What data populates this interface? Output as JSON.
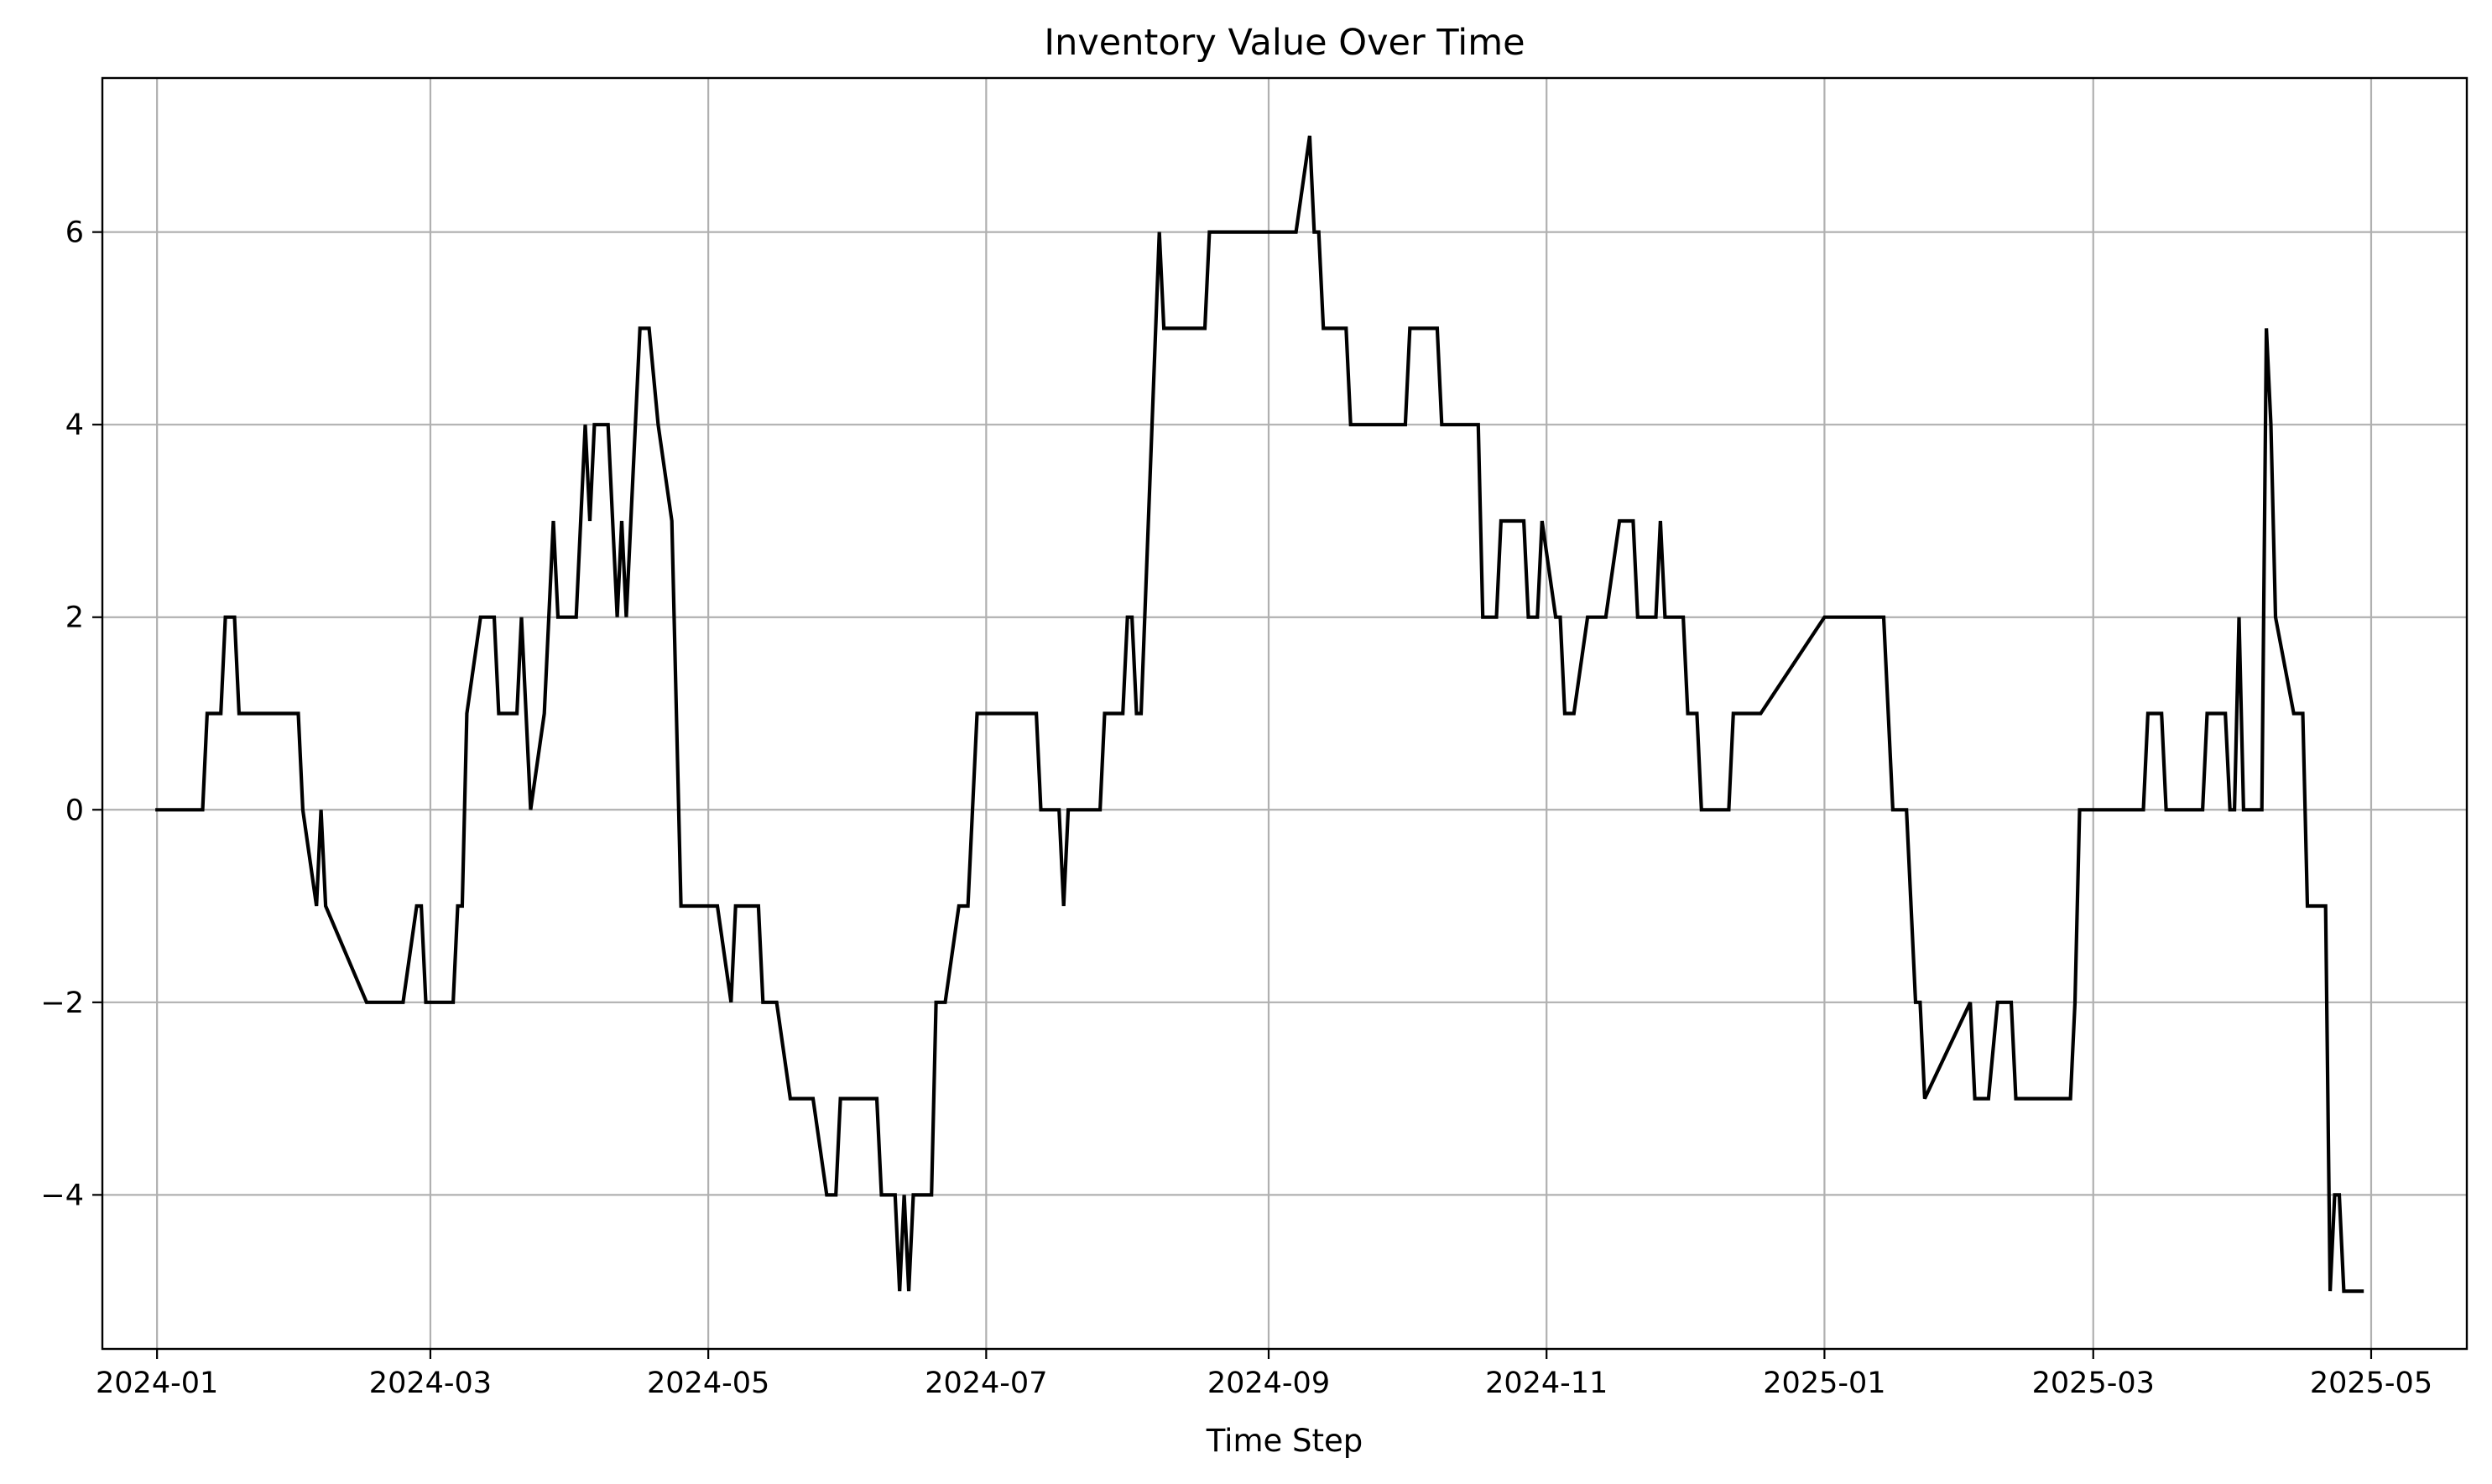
{
  "chart_data": {
    "type": "line",
    "title": "Inventory Value Over Time",
    "xlabel": "Time Step",
    "ylabel": "",
    "x_tick_labels": [
      "2024-01",
      "2024-03",
      "2024-05",
      "2024-07",
      "2024-09",
      "2024-11",
      "2025-01",
      "2025-03",
      "2025-05"
    ],
    "y_ticks": [
      -4,
      -2,
      0,
      2,
      4,
      6
    ],
    "xlim": [
      "2023-12-20",
      "2025-05-22"
    ],
    "ylim": [
      -5.6,
      7.6
    ],
    "grid": true,
    "colors": {
      "line": "#000000",
      "grid": "#b0b0b0"
    },
    "series": [
      {
        "name": "",
        "points": [
          [
            "2024-01-01",
            0
          ],
          [
            "2024-01-11",
            0
          ],
          [
            "2024-01-12",
            1
          ],
          [
            "2024-01-15",
            1
          ],
          [
            "2024-01-16",
            2
          ],
          [
            "2024-01-18",
            2
          ],
          [
            "2024-01-19",
            1
          ],
          [
            "2024-02-01",
            1
          ],
          [
            "2024-02-02",
            0
          ],
          [
            "2024-02-05",
            -1
          ],
          [
            "2024-02-06",
            0
          ],
          [
            "2024-02-07",
            -1
          ],
          [
            "2024-02-16",
            -2
          ],
          [
            "2024-02-24",
            -2
          ],
          [
            "2024-02-27",
            -1
          ],
          [
            "2024-02-28",
            -1
          ],
          [
            "2024-02-29",
            -2
          ],
          [
            "2024-03-06",
            -2
          ],
          [
            "2024-03-07",
            -1
          ],
          [
            "2024-03-08",
            -1
          ],
          [
            "2024-03-09",
            1
          ],
          [
            "2024-03-12",
            2
          ],
          [
            "2024-03-15",
            2
          ],
          [
            "2024-03-16",
            1
          ],
          [
            "2024-03-20",
            1
          ],
          [
            "2024-03-21",
            2
          ],
          [
            "2024-03-23",
            0
          ],
          [
            "2024-03-26",
            1
          ],
          [
            "2024-03-28",
            3
          ],
          [
            "2024-03-29",
            2
          ],
          [
            "2024-04-02",
            2
          ],
          [
            "2024-04-04",
            4
          ],
          [
            "2024-04-05",
            3
          ],
          [
            "2024-04-06",
            4
          ],
          [
            "2024-04-09",
            4
          ],
          [
            "2024-04-11",
            2
          ],
          [
            "2024-04-12",
            3
          ],
          [
            "2024-04-13",
            2
          ],
          [
            "2024-04-16",
            5
          ],
          [
            "2024-04-18",
            5
          ],
          [
            "2024-04-20",
            4
          ],
          [
            "2024-04-23",
            3
          ],
          [
            "2024-04-25",
            -1
          ],
          [
            "2024-05-03",
            -1
          ],
          [
            "2024-05-06",
            -2
          ],
          [
            "2024-05-07",
            -1
          ],
          [
            "2024-05-12",
            -1
          ],
          [
            "2024-05-13",
            -2
          ],
          [
            "2024-05-16",
            -2
          ],
          [
            "2024-05-19",
            -3
          ],
          [
            "2024-05-24",
            -3
          ],
          [
            "2024-05-27",
            -4
          ],
          [
            "2024-05-29",
            -4
          ],
          [
            "2024-05-30",
            -3
          ],
          [
            "2024-06-07",
            -3
          ],
          [
            "2024-06-08",
            -4
          ],
          [
            "2024-06-11",
            -4
          ],
          [
            "2024-06-12",
            -5
          ],
          [
            "2024-06-13",
            -4
          ],
          [
            "2024-06-14",
            -5
          ],
          [
            "2024-06-15",
            -4
          ],
          [
            "2024-06-19",
            -4
          ],
          [
            "2024-06-20",
            -2
          ],
          [
            "2024-06-22",
            -2
          ],
          [
            "2024-06-25",
            -1
          ],
          [
            "2024-06-27",
            -1
          ],
          [
            "2024-06-29",
            1
          ],
          [
            "2024-07-12",
            1
          ],
          [
            "2024-07-13",
            0
          ],
          [
            "2024-07-17",
            0
          ],
          [
            "2024-07-18",
            -1
          ],
          [
            "2024-07-19",
            0
          ],
          [
            "2024-07-26",
            0
          ],
          [
            "2024-07-27",
            1
          ],
          [
            "2024-07-31",
            1
          ],
          [
            "2024-08-01",
            2
          ],
          [
            "2024-08-02",
            2
          ],
          [
            "2024-08-03",
            1
          ],
          [
            "2024-08-04",
            1
          ],
          [
            "2024-08-08",
            6
          ],
          [
            "2024-08-09",
            5
          ],
          [
            "2024-08-18",
            5
          ],
          [
            "2024-08-19",
            6
          ],
          [
            "2024-09-07",
            6
          ],
          [
            "2024-09-10",
            7
          ],
          [
            "2024-09-11",
            6
          ],
          [
            "2024-09-12",
            6
          ],
          [
            "2024-09-13",
            5
          ],
          [
            "2024-09-18",
            5
          ],
          [
            "2024-09-19",
            4
          ],
          [
            "2024-10-01",
            4
          ],
          [
            "2024-10-02",
            5
          ],
          [
            "2024-10-08",
            5
          ],
          [
            "2024-10-09",
            4
          ],
          [
            "2024-10-17",
            4
          ],
          [
            "2024-10-18",
            2
          ],
          [
            "2024-10-21",
            2
          ],
          [
            "2024-10-22",
            3
          ],
          [
            "2024-10-27",
            3
          ],
          [
            "2024-10-28",
            2
          ],
          [
            "2024-10-30",
            2
          ],
          [
            "2024-10-31",
            3
          ],
          [
            "2024-11-03",
            2
          ],
          [
            "2024-11-04",
            2
          ],
          [
            "2024-11-05",
            1
          ],
          [
            "2024-11-07",
            1
          ],
          [
            "2024-11-10",
            2
          ],
          [
            "2024-11-14",
            2
          ],
          [
            "2024-11-17",
            3
          ],
          [
            "2024-11-20",
            3
          ],
          [
            "2024-11-21",
            2
          ],
          [
            "2024-11-25",
            2
          ],
          [
            "2024-11-26",
            3
          ],
          [
            "2024-11-27",
            2
          ],
          [
            "2024-12-01",
            2
          ],
          [
            "2024-12-02",
            1
          ],
          [
            "2024-12-04",
            1
          ],
          [
            "2024-12-05",
            0
          ],
          [
            "2024-12-11",
            0
          ],
          [
            "2024-12-12",
            1
          ],
          [
            "2024-12-18",
            1
          ],
          [
            "2025-01-01",
            2
          ],
          [
            "2025-01-14",
            2
          ],
          [
            "2025-01-16",
            0
          ],
          [
            "2025-01-19",
            0
          ],
          [
            "2025-01-21",
            -2
          ],
          [
            "2025-01-22",
            -2
          ],
          [
            "2025-01-23",
            -3
          ],
          [
            "2025-02-02",
            -2
          ],
          [
            "2025-02-03",
            -3
          ],
          [
            "2025-02-06",
            -3
          ],
          [
            "2025-02-08",
            -2
          ],
          [
            "2025-02-11",
            -2
          ],
          [
            "2025-02-12",
            -3
          ],
          [
            "2025-02-24",
            -3
          ],
          [
            "2025-02-25",
            -2
          ],
          [
            "2025-02-26",
            0
          ],
          [
            "2025-03-12",
            0
          ],
          [
            "2025-03-13",
            1
          ],
          [
            "2025-03-16",
            1
          ],
          [
            "2025-03-17",
            0
          ],
          [
            "2025-03-25",
            0
          ],
          [
            "2025-03-26",
            1
          ],
          [
            "2025-03-30",
            1
          ],
          [
            "2025-03-31",
            0
          ],
          [
            "2025-04-01",
            0
          ],
          [
            "2025-04-02",
            2
          ],
          [
            "2025-04-03",
            0
          ],
          [
            "2025-04-07",
            0
          ],
          [
            "2025-04-08",
            5
          ],
          [
            "2025-04-09",
            4
          ],
          [
            "2025-04-10",
            2
          ],
          [
            "2025-04-14",
            1
          ],
          [
            "2025-04-16",
            1
          ],
          [
            "2025-04-17",
            -1
          ],
          [
            "2025-04-21",
            -1
          ],
          [
            "2025-04-22",
            -5
          ],
          [
            "2025-04-23",
            -4
          ],
          [
            "2025-04-24",
            -4
          ],
          [
            "2025-04-25",
            -5
          ],
          [
            "2025-04-29",
            -5
          ]
        ]
      }
    ]
  }
}
